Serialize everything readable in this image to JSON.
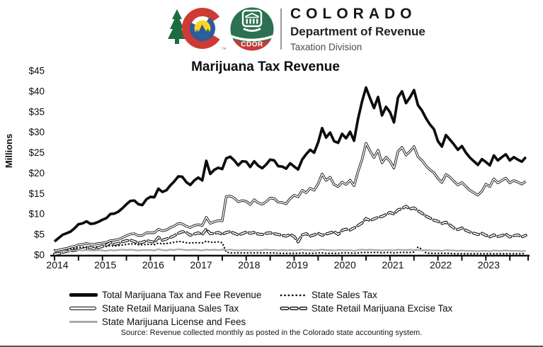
{
  "header": {
    "org_name": "COLORADO",
    "department": "Department of Revenue",
    "division": "Taxation Division",
    "cdor_label": "CDOR",
    "trademark": "TM",
    "colors": {
      "logo_green": "#1d6b40",
      "logo_red": "#ce3b34",
      "logo_blue": "#2a5c9c",
      "logo_yellow": "#fdd424",
      "badge_green": "#2c7150",
      "badge_red": "#c8393c"
    }
  },
  "chart_data": {
    "type": "line",
    "title": "Marijuana Tax Revenue",
    "ylabel": "Millions",
    "units": "USD millions, monthly",
    "x_start": "2014-01",
    "x_end": "2023-11",
    "frequency": "monthly",
    "x_tick_labels": [
      "2014",
      "2015",
      "2016",
      "2017",
      "2018",
      "2019",
      "2020",
      "2021",
      "2022",
      "2023"
    ],
    "y_tick_labels": [
      "$0",
      "$5",
      "$10",
      "$15",
      "$20",
      "$25",
      "$30",
      "$35",
      "$40",
      "$45"
    ],
    "ylim": [
      0,
      45
    ],
    "grid": false,
    "legend_position": "bottom",
    "series": [
      {
        "name": "Total Marijuana Tax and Fee Revenue",
        "line_style": "solid_thick",
        "color": "#0d0d0d",
        "values": [
          3.3,
          4.1,
          4.9,
          5.3,
          5.7,
          6.5,
          7.5,
          7.7,
          8.2,
          7.6,
          7.7,
          8.1,
          8.6,
          9.0,
          10.0,
          10.1,
          10.6,
          11.4,
          12.4,
          13.2,
          13.3,
          12.4,
          12.2,
          13.6,
          14.2,
          14.1,
          16.2,
          15.4,
          15.8,
          17.0,
          18.0,
          19.2,
          19.1,
          17.8,
          17.1,
          18.2,
          18.9,
          18.2,
          23.0,
          19.8,
          20.8,
          21.3,
          21.0,
          23.6,
          24.0,
          23.1,
          21.9,
          22.9,
          22.8,
          21.5,
          22.9,
          21.8,
          21.2,
          22.1,
          23.3,
          23.1,
          21.7,
          21.6,
          21.1,
          22.4,
          21.6,
          20.9,
          23.3,
          24.6,
          25.7,
          25.0,
          27.5,
          31.0,
          28.7,
          29.9,
          27.8,
          27.4,
          29.6,
          28.5,
          30.1,
          27.9,
          33.3,
          37.5,
          40.9,
          38.3,
          35.9,
          38.6,
          34.1,
          36.2,
          34.9,
          32.4,
          38.5,
          40.0,
          37.1,
          38.5,
          40.3,
          36.6,
          35.3,
          33.4,
          31.9,
          30.7,
          27.8,
          26.5,
          29.3,
          28.2,
          27.0,
          25.7,
          26.6,
          25.0,
          23.8,
          22.9,
          22.0,
          23.4,
          22.7,
          21.9,
          24.3,
          23.1,
          23.9,
          24.6,
          23.1,
          23.9,
          23.3,
          22.8,
          23.9
        ]
      },
      {
        "name": "State Sales Tax",
        "line_style": "dotted",
        "color": "#0d0d0d",
        "values": [
          1.2,
          1.0,
          1.3,
          1.4,
          1.5,
          1.6,
          1.9,
          1.9,
          2.0,
          1.9,
          1.9,
          2.0,
          2.0,
          2.1,
          2.3,
          2.2,
          2.3,
          2.4,
          2.6,
          2.7,
          2.7,
          2.5,
          2.5,
          2.6,
          2.6,
          2.5,
          2.9,
          2.7,
          2.8,
          2.9,
          3.1,
          3.3,
          3.2,
          3.0,
          2.9,
          3.0,
          3.0,
          2.9,
          3.4,
          3.1,
          3.1,
          3.2,
          3.0,
          0.7,
          0.5,
          0.5,
          0.5,
          0.5,
          0.5,
          0.5,
          0.5,
          0.5,
          0.5,
          0.5,
          0.5,
          0.5,
          0.4,
          0.4,
          0.4,
          0.4,
          0.4,
          0.4,
          0.5,
          0.4,
          0.4,
          0.4,
          0.5,
          0.5,
          0.4,
          0.4,
          0.4,
          0.4,
          0.5,
          0.5,
          0.5,
          0.4,
          0.5,
          0.6,
          0.6,
          0.6,
          0.6,
          0.6,
          0.5,
          0.6,
          0.6,
          0.5,
          0.6,
          0.6,
          0.6,
          0.6,
          0.7,
          1.9,
          1.4,
          0.5,
          0.4,
          0.4,
          0.4,
          0.4,
          0.4,
          0.4,
          0.3,
          0.3,
          0.3,
          0.3,
          0.3,
          0.3,
          0.3,
          0.3,
          0.3,
          0.3,
          0.3,
          0.3,
          0.3,
          0.3,
          0.3,
          0.3,
          0.3,
          0.3,
          0.4
        ]
      },
      {
        "name": "State Retail Marijuana Sales Tax",
        "line_style": "double",
        "color": "#0d0d0d",
        "values": [
          1.0,
          1.2,
          1.4,
          1.6,
          1.9,
          2.1,
          2.5,
          2.6,
          2.8,
          2.6,
          2.6,
          2.8,
          2.9,
          3.1,
          3.5,
          3.6,
          3.8,
          4.2,
          4.7,
          5.1,
          5.2,
          4.7,
          4.8,
          5.4,
          5.4,
          5.4,
          6.3,
          5.9,
          6.1,
          6.7,
          7.1,
          7.7,
          7.6,
          7.0,
          6.7,
          7.2,
          7.4,
          7.2,
          9.2,
          7.7,
          8.1,
          8.4,
          8.3,
          14.3,
          14.4,
          13.9,
          13.0,
          13.3,
          13.1,
          12.3,
          13.5,
          12.7,
          12.4,
          13.0,
          13.9,
          13.8,
          12.9,
          12.8,
          12.5,
          13.8,
          14.6,
          14.2,
          15.8,
          15.2,
          16.3,
          15.8,
          17.4,
          19.8,
          18.2,
          19.0,
          17.2,
          16.7,
          17.8,
          17.2,
          18.3,
          16.9,
          20.4,
          23.3,
          27.3,
          25.4,
          23.8,
          25.6,
          22.5,
          23.9,
          22.9,
          21.2,
          25.3,
          26.3,
          24.4,
          25.3,
          26.5,
          24.0,
          23.1,
          21.8,
          20.8,
          20.1,
          18.7,
          17.7,
          19.7,
          19.0,
          18.0,
          17.1,
          17.7,
          16.7,
          15.8,
          15.2,
          14.6,
          15.6,
          17.3,
          16.7,
          18.6,
          17.6,
          18.2,
          18.8,
          17.6,
          18.2,
          17.8,
          17.3,
          18.0
        ]
      },
      {
        "name": "State Retail Marijuana Excise Tax",
        "line_style": "dashed_hollow",
        "color": "#0d0d0d",
        "values": [
          0.2,
          0.3,
          0.6,
          0.9,
          1.0,
          1.1,
          1.3,
          1.4,
          1.6,
          1.8,
          1.5,
          1.8,
          2.1,
          2.4,
          3.0,
          2.6,
          2.8,
          3.2,
          3.5,
          3.6,
          3.3,
          2.9,
          3.1,
          3.5,
          3.3,
          3.1,
          4.3,
          3.6,
          3.9,
          4.3,
          4.7,
          5.3,
          5.7,
          5.5,
          4.8,
          5.1,
          5.4,
          5.0,
          6.3,
          5.2,
          5.3,
          5.5,
          5.0,
          5.5,
          5.7,
          5.3,
          4.9,
          5.2,
          5.6,
          5.3,
          5.5,
          5.1,
          5.0,
          5.3,
          5.4,
          5.2,
          5.0,
          4.8,
          4.6,
          5.0,
          4.5,
          3.2,
          4.9,
          5.2,
          4.6,
          4.9,
          5.3,
          4.8,
          5.1,
          5.4,
          5.7,
          5.0,
          6.0,
          6.3,
          6.1,
          6.6,
          7.2,
          7.8,
          8.9,
          8.4,
          8.8,
          9.2,
          9.4,
          9.9,
          10.4,
          10.0,
          11.0,
          11.3,
          11.9,
          11.2,
          11.5,
          10.8,
          10.2,
          9.5,
          9.0,
          8.5,
          8.2,
          7.7,
          8.0,
          7.3,
          6.6,
          6.2,
          6.6,
          6.0,
          5.6,
          5.3,
          5.0,
          5.3,
          4.8,
          4.4,
          4.9,
          4.5,
          4.7,
          5.1,
          4.4,
          4.7,
          4.9,
          4.4,
          4.8
        ]
      },
      {
        "name": "State Marijuana License and Fees",
        "line_style": "solid_gray",
        "color": "#a8a8a8",
        "values": [
          0.8,
          0.9,
          1.0,
          0.9,
          1.0,
          1.1,
          1.2,
          1.1,
          1.2,
          1.1,
          1.1,
          1.2,
          1.1,
          1.0,
          1.2,
          1.1,
          1.2,
          1.3,
          1.2,
          1.3,
          1.2,
          1.1,
          1.2,
          1.2,
          1.2,
          1.1,
          1.4,
          1.2,
          1.1,
          1.3,
          1.2,
          1.4,
          1.3,
          1.2,
          1.2,
          1.3,
          1.2,
          1.1,
          1.3,
          1.2,
          1.3,
          1.2,
          1.3,
          1.2,
          1.3,
          1.2,
          1.1,
          1.2,
          1.2,
          1.1,
          1.2,
          1.1,
          1.2,
          1.3,
          1.2,
          1.2,
          1.1,
          1.2,
          1.1,
          1.2,
          1.1,
          1.2,
          1.3,
          1.2,
          1.2,
          1.1,
          1.2,
          1.3,
          1.2,
          1.2,
          1.1,
          1.2,
          1.2,
          1.1,
          1.2,
          1.0,
          1.2,
          1.3,
          1.2,
          1.3,
          1.2,
          1.2,
          1.1,
          1.2,
          1.2,
          1.1,
          1.3,
          1.2,
          1.2,
          1.3,
          1.2,
          1.2,
          1.1,
          1.2,
          1.1,
          1.1,
          1.1,
          1.0,
          1.2,
          1.1,
          1.1,
          1.0,
          1.1,
          1.0,
          1.0,
          1.0,
          0.9,
          1.0,
          1.0,
          0.9,
          1.1,
          1.0,
          1.0,
          1.1,
          1.0,
          1.0,
          1.0,
          0.9,
          1.0
        ]
      }
    ],
    "source": "Source: Revenue collected monthly as posted in the Colorado state accounting system."
  }
}
